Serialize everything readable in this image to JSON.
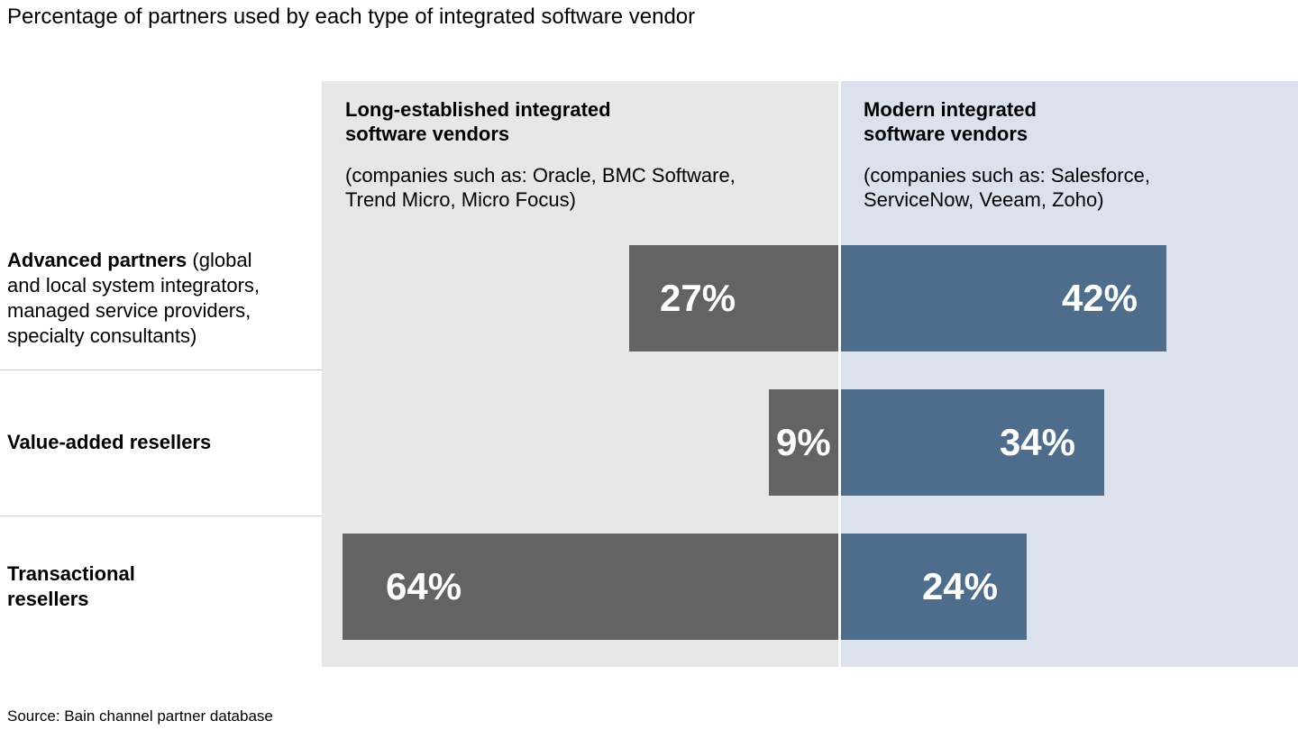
{
  "chart_data": {
    "type": "bar",
    "orientation": "horizontal",
    "title": "Percentage of partners used by each type of integrated software vendor",
    "unit": "%",
    "categories": [
      "Advanced partners (global and local system integrators, managed service providers, specialty consultants)",
      "Value-added resellers",
      "Transactional resellers"
    ],
    "series": [
      {
        "name": "Long-established integrated software vendors",
        "values": [
          27,
          9,
          64
        ],
        "color": "#636363"
      },
      {
        "name": "Modern integrated software vendors",
        "values": [
          42,
          34,
          24
        ],
        "color": "#4e6d8c"
      }
    ],
    "xlim": [
      0,
      66.6
    ],
    "grid": false,
    "legend_position": "column-headers",
    "panels": [
      {
        "title": "Long-established integrated\nsoftware vendors",
        "subtitle": "(companies such as: Oracle, BMC Software,\nTrend Micro, Micro Focus)",
        "bg": "#e7e7e7",
        "bar_color": "#636363"
      },
      {
        "title": "Modern integrated\nsoftware vendors",
        "subtitle": "(companies such as: Salesforce,\nServiceNow, Veeam, Zoho)",
        "bg": "#dbe2ee",
        "bar_color": "#4e6d8c"
      }
    ],
    "rows": [
      {
        "label_bold": "Advanced partners",
        "label_rest": " (global\nand local system integrators,\nmanaged service providers,\nspecialty consultants)"
      },
      {
        "label_bold": "Value-added resellers",
        "label_rest": ""
      },
      {
        "label_bold": "Transactional\nresellers",
        "label_rest": ""
      }
    ],
    "source": "Source: Bain channel partner database"
  }
}
